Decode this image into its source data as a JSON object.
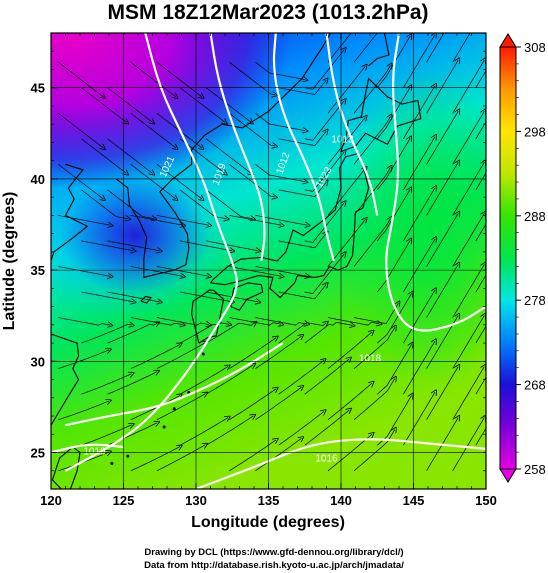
{
  "title": "MSM 18Z12Mar2023 (1013.2hPa)",
  "map": {
    "xlabel": "Longitude (degrees)",
    "ylabel": "Latitude  (degrees)",
    "lon_range": [
      120,
      150
    ],
    "lat_range": [
      23,
      48
    ],
    "lon_ticks": [
      120,
      125,
      130,
      135,
      140,
      145,
      150
    ],
    "lat_ticks": [
      25,
      30,
      35,
      40,
      45
    ],
    "variable": "temperature",
    "overlay": "streamlines",
    "contours": "pressure",
    "contour_color": "#ffffff",
    "contour_labels": [
      "1021",
      "1019",
      "1012",
      "1013",
      "1023",
      "1018",
      "1016",
      "1016"
    ],
    "coastline_color": "#000000",
    "grid": true
  },
  "colorbar": {
    "min": 258,
    "max": 308,
    "ticks": [
      258,
      268,
      278,
      288,
      298,
      308
    ],
    "colormap": [
      "#e600e6",
      "#1a00d9",
      "#0080ff",
      "#00e6e6",
      "#00e64d",
      "#66e600",
      "#e6e600",
      "#ff9900",
      "#ff1a00"
    ]
  },
  "credits": {
    "line1": "Drawing by DCL (https://www.gfd-dennou.org/library/dcl/)",
    "line2": "Data from http://database.rish.kyoto-u.ac.jp/arch/jmadata/"
  }
}
